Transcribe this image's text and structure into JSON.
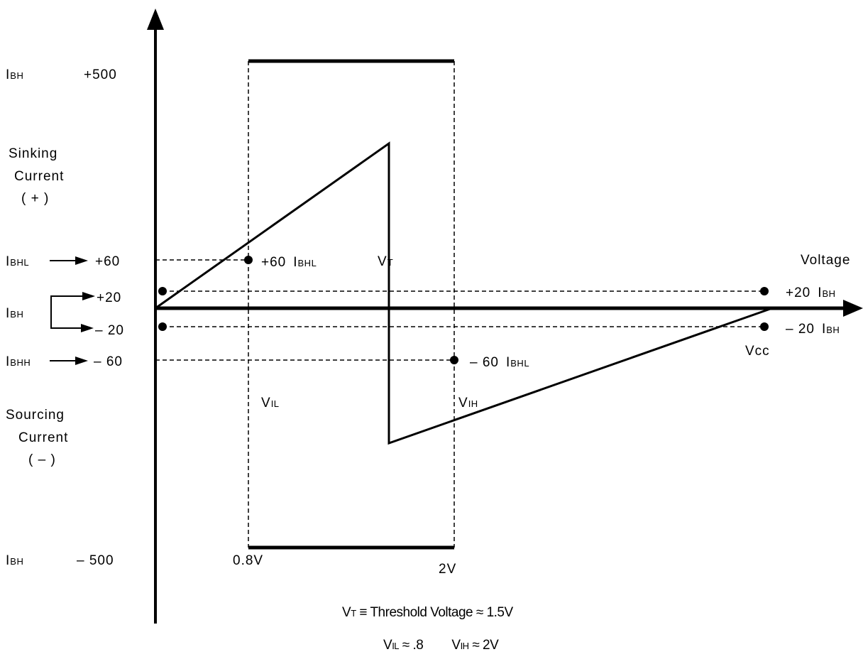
{
  "axes": {
    "y_upper": {
      "prefix": "I",
      "sub": "BH",
      "value": "+500"
    },
    "y_lower": {
      "prefix": "I",
      "sub": "BH",
      "value": "– 500"
    },
    "sinking": [
      "Sinking",
      "Current",
      "( + )"
    ],
    "sourcing": [
      "Sourcing",
      "Current",
      "( – )"
    ],
    "x_label": "Voltage"
  },
  "left_levels": {
    "ibhl": {
      "prefix": "I",
      "sub": "BHL",
      "value": "+60"
    },
    "ibh": {
      "prefix": "I",
      "sub": "BH",
      "plus": "+20",
      "minus": "– 20"
    },
    "ibhh": {
      "prefix": "I",
      "sub": "BHH",
      "value": "– 60"
    }
  },
  "points": {
    "p60": {
      "value": "+60",
      "prefix": "I",
      "sub": "BHL"
    },
    "m60": {
      "value": "– 60",
      "prefix": "I",
      "sub": "BHL"
    },
    "p20": {
      "value": "+20",
      "prefix": "I",
      "sub": "BH"
    },
    "m20": {
      "value": "– 20",
      "prefix": "I",
      "sub": "BH"
    }
  },
  "voltages": {
    "vt": {
      "prefix": "V",
      "sub": "T"
    },
    "vil": {
      "prefix": "V",
      "sub": "IL"
    },
    "vih": {
      "prefix": "V",
      "sub": "IH"
    },
    "vcc": "Vcc",
    "v08": "0.8V",
    "v2": "2V"
  },
  "notes": {
    "line1": {
      "prefix": "V",
      "sub": "T",
      "text": " ≡  Threshold Voltage ≈ 1.5V"
    },
    "line2": {
      "a_prefix": "V",
      "a_sub": "IL",
      "a_text": " ≈ .8",
      "b_prefix": "V",
      "b_sub": "IH",
      "b_text": " ≈ 2V"
    }
  }
}
